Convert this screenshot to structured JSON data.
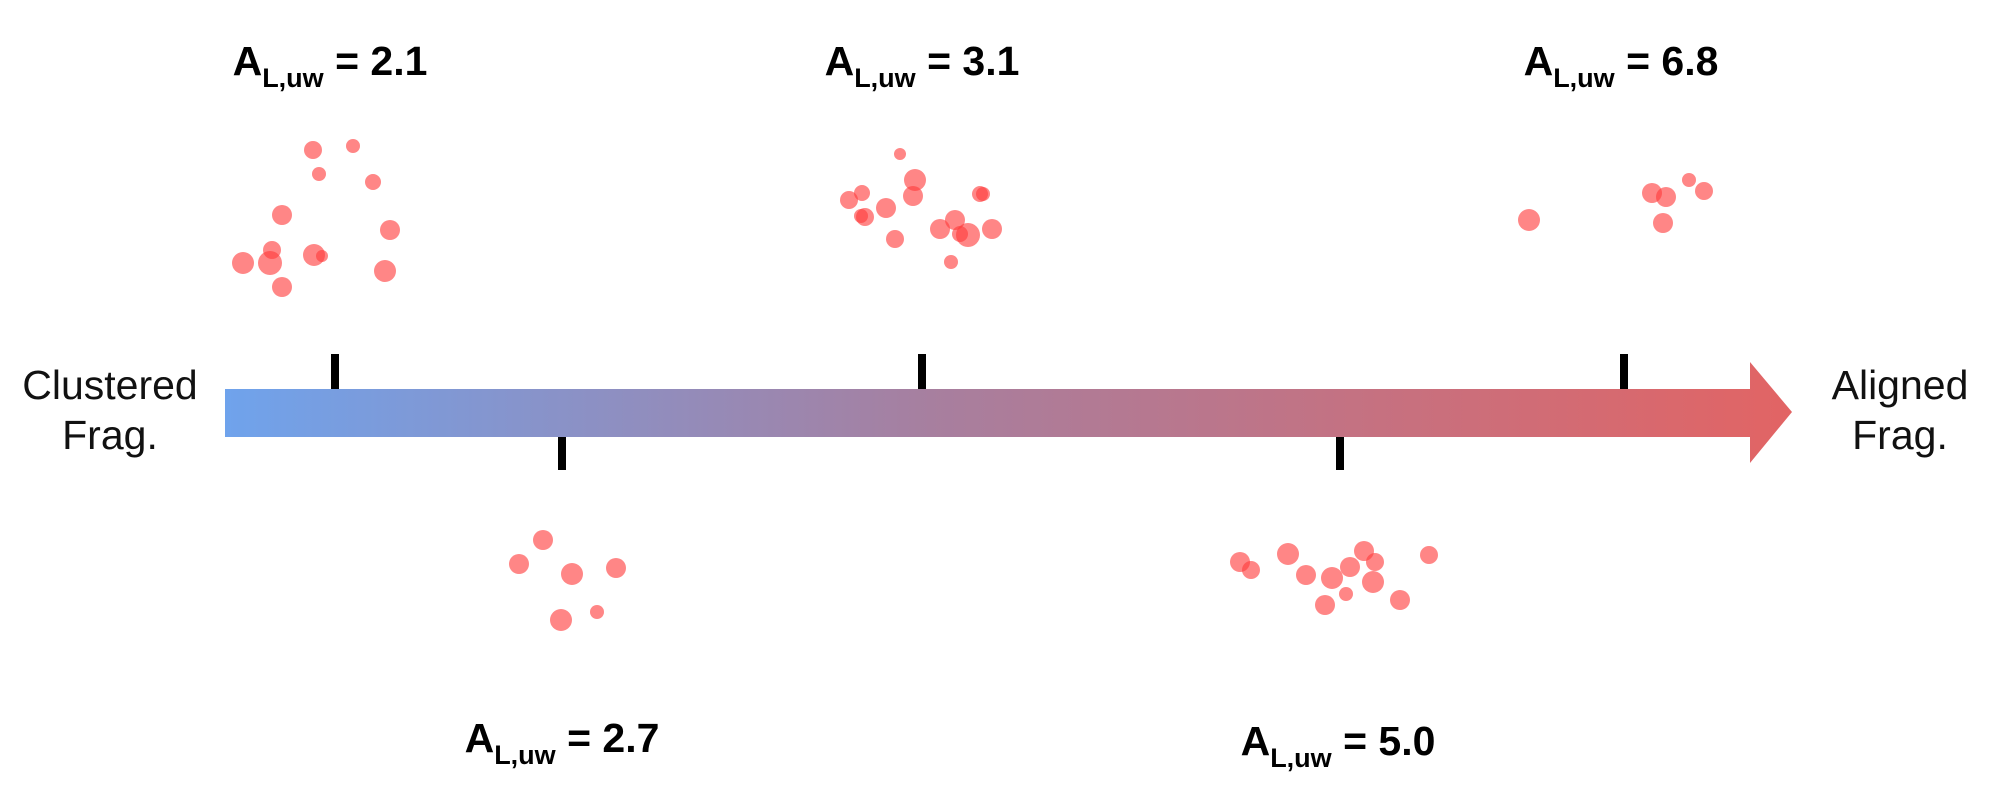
{
  "labels": {
    "left_line1": "Clustered",
    "left_line2": "Frag.",
    "right_line1": "Aligned",
    "right_line2": "Frag."
  },
  "colors": {
    "gradient_start": "#6fa3ec",
    "gradient_mid": "#a77f9f",
    "gradient_end": "#e26464",
    "dot": "#ff3b3b",
    "tick": "#000000"
  },
  "markers": [
    {
      "symbol": "A",
      "subscript": "L,uw",
      "equals": " = ",
      "value": "2.1",
      "side": "top"
    },
    {
      "symbol": "A",
      "subscript": "L,uw",
      "equals": " = ",
      "value": "2.7",
      "side": "bottom"
    },
    {
      "symbol": "A",
      "subscript": "L,uw",
      "equals": " = ",
      "value": "3.1",
      "side": "top"
    },
    {
      "symbol": "A",
      "subscript": "L,uw",
      "equals": " = ",
      "value": "5.0",
      "side": "bottom"
    },
    {
      "symbol": "A",
      "subscript": "L,uw",
      "equals": " = ",
      "value": "6.8",
      "side": "top"
    }
  ]
}
